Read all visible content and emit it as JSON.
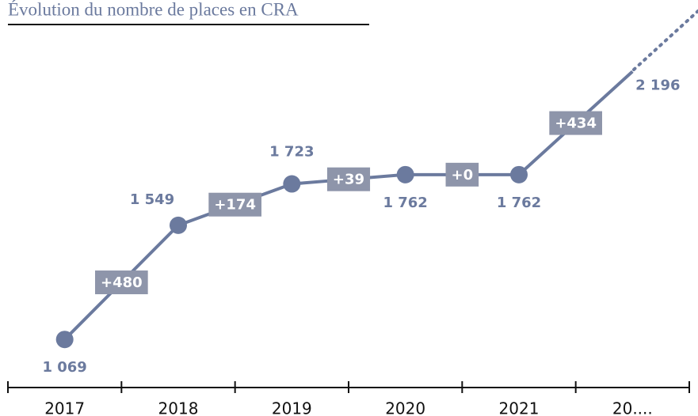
{
  "chart_data": {
    "type": "line",
    "title": "Évolution du nombre de places en CRA",
    "categories": [
      "2017",
      "2018",
      "2019",
      "2020",
      "2021",
      "20...."
    ],
    "values": [
      1069,
      1549,
      1723,
      1762,
      1762,
      2196
    ],
    "value_labels": [
      "1 069",
      "1 549",
      "1 723",
      "1 762",
      "1 762",
      "2 196"
    ],
    "changes": [
      480,
      174,
      39,
      0,
      434
    ],
    "change_labels": [
      "+480",
      "+174",
      "+39",
      "+0",
      "+434"
    ],
    "color": "#6b7a9e",
    "ylim": [
      900,
      2430
    ]
  }
}
